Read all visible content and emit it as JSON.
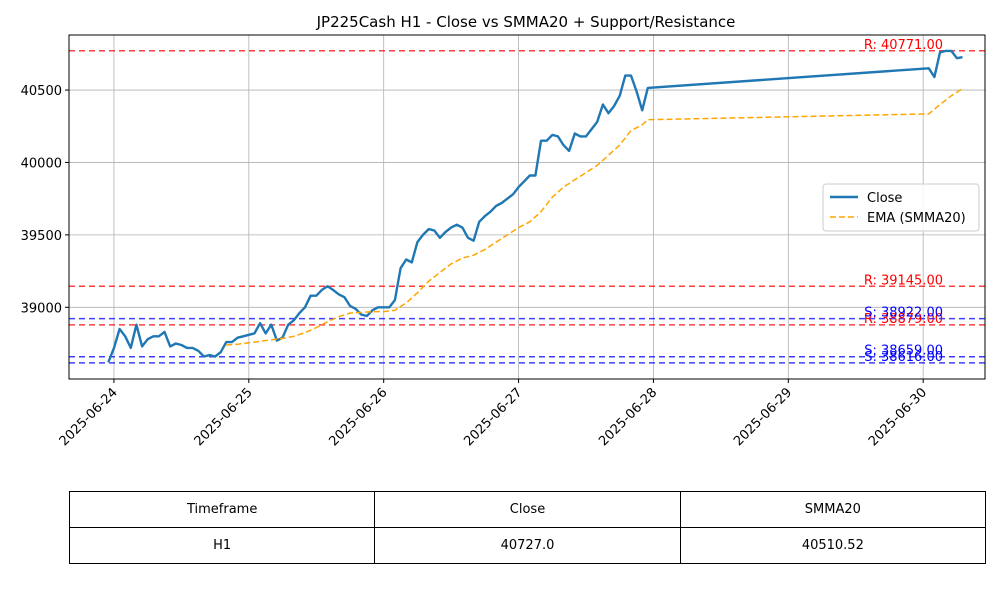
{
  "chart_data": {
    "type": "line",
    "title": "JP225Cash H1 - Close vs SMMA20 + Support/Resistance",
    "xlabel": "",
    "ylabel": "",
    "xlim": [
      "2025-06-23 16:00",
      "2025-06-30 11:00"
    ],
    "ylim": [
      38505,
      40880
    ],
    "grid": true,
    "legend": "center-right",
    "x_ticks": [
      "2025-06-24",
      "2025-06-25",
      "2025-06-26",
      "2025-06-27",
      "2025-06-28",
      "2025-06-29",
      "2025-06-30"
    ],
    "y_ticks": [
      39000,
      39500,
      40000,
      40500
    ],
    "series": [
      {
        "name": "Close",
        "color": "#1f77b4",
        "style": "solid",
        "points": [
          [
            "2025-06-23 23:00",
            38620
          ],
          [
            "2025-06-24 00:00",
            38720
          ],
          [
            "2025-06-24 01:00",
            38850
          ],
          [
            "2025-06-24 02:00",
            38800
          ],
          [
            "2025-06-24 03:00",
            38720
          ],
          [
            "2025-06-24 04:00",
            38880
          ],
          [
            "2025-06-24 05:00",
            38730
          ],
          [
            "2025-06-24 06:00",
            38780
          ],
          [
            "2025-06-24 07:00",
            38800
          ],
          [
            "2025-06-24 08:00",
            38800
          ],
          [
            "2025-06-24 09:00",
            38830
          ],
          [
            "2025-06-24 10:00",
            38730
          ],
          [
            "2025-06-24 11:00",
            38750
          ],
          [
            "2025-06-24 12:00",
            38740
          ],
          [
            "2025-06-24 13:00",
            38720
          ],
          [
            "2025-06-24 14:00",
            38720
          ],
          [
            "2025-06-24 15:00",
            38700
          ],
          [
            "2025-06-24 16:00",
            38660
          ],
          [
            "2025-06-24 17:00",
            38670
          ],
          [
            "2025-06-24 18:00",
            38660
          ],
          [
            "2025-06-24 19:00",
            38690
          ],
          [
            "2025-06-24 20:00",
            38760
          ],
          [
            "2025-06-24 21:00",
            38760
          ],
          [
            "2025-06-24 22:00",
            38790
          ],
          [
            "2025-06-24 23:00",
            38800
          ],
          [
            "2025-06-25 00:00",
            38810
          ],
          [
            "2025-06-25 01:00",
            38820
          ],
          [
            "2025-06-25 02:00",
            38890
          ],
          [
            "2025-06-25 03:00",
            38820
          ],
          [
            "2025-06-25 04:00",
            38880
          ],
          [
            "2025-06-25 05:00",
            38770
          ],
          [
            "2025-06-25 06:00",
            38790
          ],
          [
            "2025-06-25 07:00",
            38880
          ],
          [
            "2025-06-25 08:00",
            38910
          ],
          [
            "2025-06-25 09:00",
            38960
          ],
          [
            "2025-06-25 10:00",
            39000
          ],
          [
            "2025-06-25 11:00",
            39080
          ],
          [
            "2025-06-25 12:00",
            39080
          ],
          [
            "2025-06-25 13:00",
            39120
          ],
          [
            "2025-06-25 14:00",
            39145
          ],
          [
            "2025-06-25 15:00",
            39120
          ],
          [
            "2025-06-25 16:00",
            39090
          ],
          [
            "2025-06-25 17:00",
            39070
          ],
          [
            "2025-06-25 18:00",
            39010
          ],
          [
            "2025-06-25 19:00",
            38990
          ],
          [
            "2025-06-25 20:00",
            38950
          ],
          [
            "2025-06-25 21:00",
            38940
          ],
          [
            "2025-06-25 22:00",
            38980
          ],
          [
            "2025-06-25 23:00",
            39000
          ],
          [
            "2025-06-26 00:00",
            39000
          ],
          [
            "2025-06-26 01:00",
            39000
          ],
          [
            "2025-06-26 02:00",
            39050
          ],
          [
            "2025-06-26 03:00",
            39270
          ],
          [
            "2025-06-26 04:00",
            39330
          ],
          [
            "2025-06-26 05:00",
            39310
          ],
          [
            "2025-06-26 06:00",
            39450
          ],
          [
            "2025-06-26 07:00",
            39500
          ],
          [
            "2025-06-26 08:00",
            39540
          ],
          [
            "2025-06-26 09:00",
            39530
          ],
          [
            "2025-06-26 10:00",
            39480
          ],
          [
            "2025-06-26 11:00",
            39520
          ],
          [
            "2025-06-26 12:00",
            39550
          ],
          [
            "2025-06-26 13:00",
            39570
          ],
          [
            "2025-06-26 14:00",
            39550
          ],
          [
            "2025-06-26 15:00",
            39480
          ],
          [
            "2025-06-26 16:00",
            39460
          ],
          [
            "2025-06-26 17:00",
            39590
          ],
          [
            "2025-06-26 18:00",
            39630
          ],
          [
            "2025-06-26 19:00",
            39660
          ],
          [
            "2025-06-26 20:00",
            39700
          ],
          [
            "2025-06-26 21:00",
            39720
          ],
          [
            "2025-06-26 22:00",
            39750
          ],
          [
            "2025-06-26 23:00",
            39780
          ],
          [
            "2025-06-27 00:00",
            39830
          ],
          [
            "2025-06-27 01:00",
            39870
          ],
          [
            "2025-06-27 02:00",
            39910
          ],
          [
            "2025-06-27 03:00",
            39910
          ],
          [
            "2025-06-27 04:00",
            40150
          ],
          [
            "2025-06-27 05:00",
            40150
          ],
          [
            "2025-06-27 06:00",
            40190
          ],
          [
            "2025-06-27 07:00",
            40180
          ],
          [
            "2025-06-27 08:00",
            40120
          ],
          [
            "2025-06-27 09:00",
            40080
          ],
          [
            "2025-06-27 10:00",
            40200
          ],
          [
            "2025-06-27 11:00",
            40180
          ],
          [
            "2025-06-27 12:00",
            40180
          ],
          [
            "2025-06-27 13:00",
            40230
          ],
          [
            "2025-06-27 14:00",
            40280
          ],
          [
            "2025-06-27 15:00",
            40400
          ],
          [
            "2025-06-27 16:00",
            40340
          ],
          [
            "2025-06-27 17:00",
            40390
          ],
          [
            "2025-06-27 18:00",
            40460
          ],
          [
            "2025-06-27 19:00",
            40600
          ],
          [
            "2025-06-27 20:00",
            40600
          ],
          [
            "2025-06-27 21:00",
            40490
          ],
          [
            "2025-06-27 22:00",
            40360
          ],
          [
            "2025-06-27 23:00",
            40515
          ],
          [
            "2025-06-30 01:00",
            40650
          ],
          [
            "2025-06-30 02:00",
            40590
          ],
          [
            "2025-06-30 03:00",
            40760
          ],
          [
            "2025-06-30 04:00",
            40770
          ],
          [
            "2025-06-30 05:00",
            40770
          ],
          [
            "2025-06-30 06:00",
            40720
          ],
          [
            "2025-06-30 07:00",
            40727
          ]
        ]
      },
      {
        "name": "EMA (SMMA20)",
        "color": "#ffa500",
        "style": "dashed",
        "points": [
          [
            "2025-06-24 20:00",
            38740
          ],
          [
            "2025-06-24 22:00",
            38745
          ],
          [
            "2025-06-25 00:00",
            38755
          ],
          [
            "2025-06-25 02:00",
            38765
          ],
          [
            "2025-06-25 04:00",
            38775
          ],
          [
            "2025-06-25 06:00",
            38785
          ],
          [
            "2025-06-25 08:00",
            38800
          ],
          [
            "2025-06-25 10:00",
            38825
          ],
          [
            "2025-06-25 12:00",
            38860
          ],
          [
            "2025-06-25 14:00",
            38900
          ],
          [
            "2025-06-25 16:00",
            38935
          ],
          [
            "2025-06-25 18:00",
            38960
          ],
          [
            "2025-06-25 20:00",
            38965
          ],
          [
            "2025-06-25 22:00",
            38970
          ],
          [
            "2025-06-26 00:00",
            38970
          ],
          [
            "2025-06-26 02:00",
            38980
          ],
          [
            "2025-06-26 04:00",
            39030
          ],
          [
            "2025-06-26 06:00",
            39100
          ],
          [
            "2025-06-26 08:00",
            39180
          ],
          [
            "2025-06-26 10:00",
            39240
          ],
          [
            "2025-06-26 12:00",
            39300
          ],
          [
            "2025-06-26 14:00",
            39340
          ],
          [
            "2025-06-26 16:00",
            39360
          ],
          [
            "2025-06-26 18:00",
            39400
          ],
          [
            "2025-06-26 20:00",
            39450
          ],
          [
            "2025-06-26 22:00",
            39500
          ],
          [
            "2025-06-27 00:00",
            39550
          ],
          [
            "2025-06-27 02:00",
            39590
          ],
          [
            "2025-06-27 04:00",
            39660
          ],
          [
            "2025-06-27 06:00",
            39760
          ],
          [
            "2025-06-27 08:00",
            39830
          ],
          [
            "2025-06-27 10:00",
            39880
          ],
          [
            "2025-06-27 12:00",
            39930
          ],
          [
            "2025-06-27 14:00",
            39980
          ],
          [
            "2025-06-27 16:00",
            40050
          ],
          [
            "2025-06-27 18:00",
            40120
          ],
          [
            "2025-06-27 20:00",
            40220
          ],
          [
            "2025-06-27 22:00",
            40260
          ],
          [
            "2025-06-27 23:00",
            40295
          ],
          [
            "2025-06-30 01:00",
            40335
          ],
          [
            "2025-06-30 03:00",
            40400
          ],
          [
            "2025-06-30 05:00",
            40460
          ],
          [
            "2025-06-30 07:00",
            40510
          ]
        ]
      }
    ],
    "levels": [
      {
        "kind": "resistance",
        "value": 40771.0,
        "label": "R: 40771.00",
        "color": "#ff0000"
      },
      {
        "kind": "resistance",
        "value": 39145.0,
        "label": "R: 39145.00",
        "color": "#ff0000"
      },
      {
        "kind": "resistance",
        "value": 38879.0,
        "label": "R: 38879.00",
        "color": "#ff0000"
      },
      {
        "kind": "support",
        "value": 38922.0,
        "label": "S: 38922.00",
        "color": "#0000ff"
      },
      {
        "kind": "support",
        "value": 38659.0,
        "label": "S: 38659.00",
        "color": "#0000ff"
      },
      {
        "kind": "support",
        "value": 38616.0,
        "label": "S: 38616.00",
        "color": "#0000ff"
      }
    ]
  },
  "table": {
    "headers": [
      "Timeframe",
      "Close",
      "SMMA20"
    ],
    "rows": [
      [
        "H1",
        "40727.0",
        "40510.52"
      ]
    ]
  }
}
